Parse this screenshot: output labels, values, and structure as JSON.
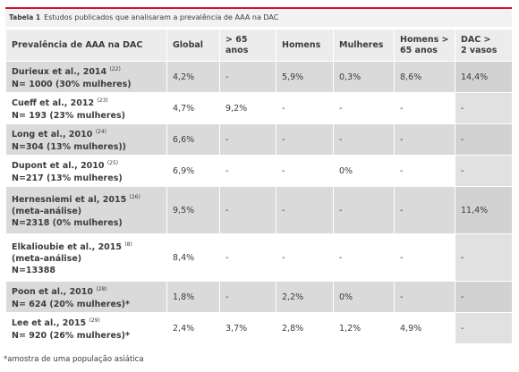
{
  "caption": {
    "label": "Tabela 1",
    "text": "Estudos publicados que analisaram a prevalência de AAA na DAC"
  },
  "table": {
    "headers": [
      [
        "Prevalência de AAA na DAC"
      ],
      [
        "Global"
      ],
      [
        "> 65 anos"
      ],
      [
        "Homens"
      ],
      [
        "Mulheres"
      ],
      [
        "Homens >",
        "65 anos"
      ],
      [
        "DAC >",
        "2 vasos"
      ]
    ],
    "rows": [
      {
        "name": "Durieux et al., 2014",
        "ref": "(22)",
        "detail": [
          "N= 1000 (30% mulheres)"
        ],
        "values": [
          "4,2%",
          "-",
          "5,9%",
          "0,3%",
          "8,6%",
          "14,4%"
        ]
      },
      {
        "name": "Cueff et al., 2012",
        "ref": "(23)",
        "detail": [
          "N= 193 (23% mulheres)"
        ],
        "values": [
          "4,7%",
          "9,2%",
          "-",
          "-",
          "-",
          "-"
        ]
      },
      {
        "name": "Long et al., 2010",
        "ref": "(24)",
        "detail": [
          "N=304 (13% mulheres))"
        ],
        "values": [
          "6,6%",
          "-",
          "-",
          "-",
          "-",
          "-"
        ]
      },
      {
        "name": "Dupont et al., 2010",
        "ref": "(25)",
        "detail": [
          "N=217 (13% mulheres)"
        ],
        "values": [
          "6,9%",
          "-",
          "-",
          "0%",
          "-",
          "-"
        ]
      },
      {
        "name": "Hernesniemi et al, 2015",
        "ref": "(26)",
        "detail": [
          "(meta-análise)",
          "N=2318 (0% mulheres)"
        ],
        "values": [
          "9,5%",
          "-",
          "-",
          "-",
          "-",
          "11,4%"
        ]
      },
      {
        "name": "Elkalioubie et al., 2015",
        "ref": "(8)",
        "detail": [
          "(meta-análise)",
          "N=13388"
        ],
        "values": [
          "8,4%",
          "-",
          "-",
          "-",
          "-",
          "-"
        ]
      },
      {
        "name": "Poon et al., 2010",
        "ref": "(28)",
        "detail": [
          "N= 624 (20% mulheres)*"
        ],
        "values": [
          "1,8%",
          "-",
          "2,2%",
          "0%",
          "-",
          "-"
        ]
      },
      {
        "name": "Lee et al., 2015",
        "ref": "(29)",
        "detail": [
          "N= 920 (26% mulheres)*"
        ],
        "values": [
          "2,4%",
          "3,7%",
          "2,8%",
          "1,2%",
          "4,9%",
          "-"
        ]
      }
    ]
  },
  "footnote": "*amostra de uma população asiática"
}
